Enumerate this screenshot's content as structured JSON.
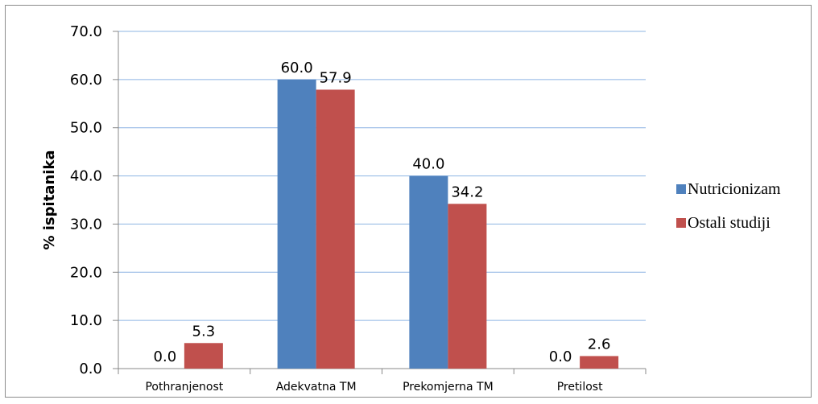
{
  "chart_data": {
    "type": "bar",
    "categories": [
      "Pothranjenost",
      "Adekvatna TM",
      "Prekomjerna TM",
      "Pretilost"
    ],
    "series": [
      {
        "name": "Nutricionizam",
        "values": [
          0.0,
          60.0,
          40.0,
          0.0
        ],
        "color": "#4f81bd"
      },
      {
        "name": "Ostali studiji",
        "values": [
          5.3,
          57.9,
          34.2,
          2.6
        ],
        "color": "#c0504d"
      }
    ],
    "title": "",
    "xlabel": "",
    "ylabel": "% ispitanika",
    "ylim": [
      0,
      70
    ],
    "yticks": [
      "0.0",
      "10.0",
      "20.0",
      "30.0",
      "40.0",
      "50.0",
      "60.0",
      "70.0"
    ],
    "grid": true,
    "gridline_color": "#8eb4e3",
    "legend_position": "right"
  }
}
